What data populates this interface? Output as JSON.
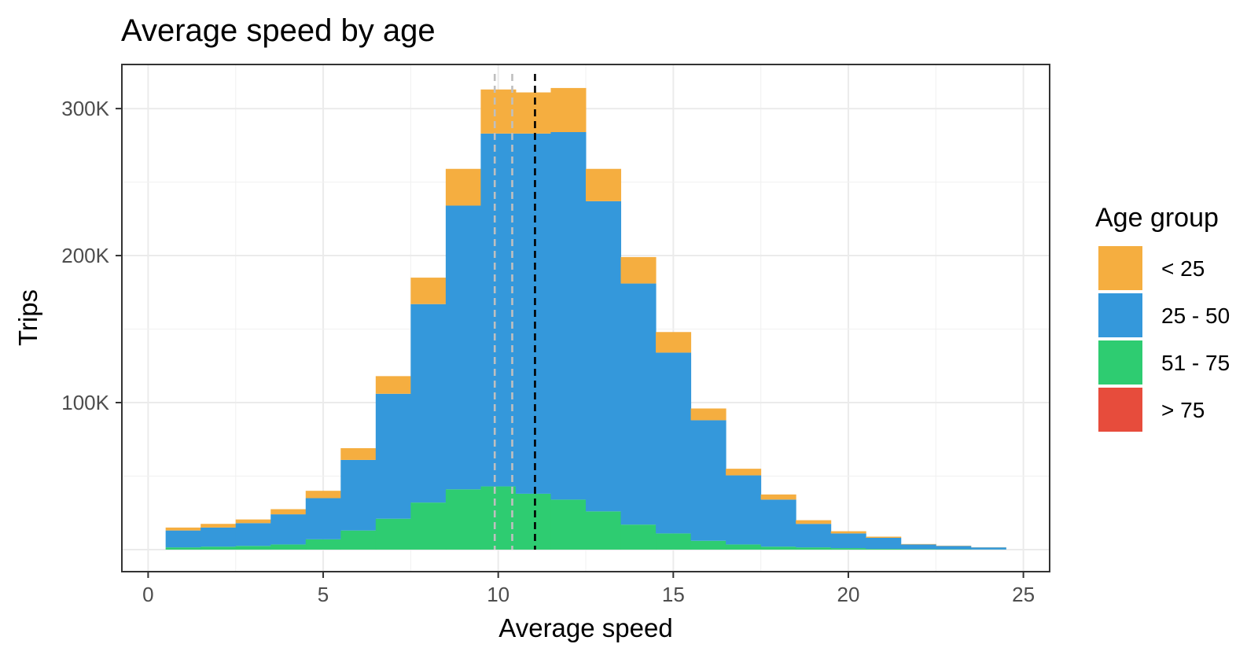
{
  "chart_data": {
    "type": "bar",
    "stacked": true,
    "title": "Average speed by age",
    "xlabel": "Average speed",
    "ylabel": "Trips",
    "xlim": [
      -0.75,
      25.75
    ],
    "ylim": [
      -15000,
      330000
    ],
    "x_ticks": [
      0,
      5,
      10,
      15,
      20,
      25
    ],
    "x_tick_labels": [
      "0",
      "5",
      "10",
      "15",
      "20",
      "25"
    ],
    "y_ticks": [
      100000,
      200000,
      300000
    ],
    "y_tick_labels": [
      "100K",
      "200K",
      "300K"
    ],
    "bin_width": 1,
    "bins": [
      1,
      2,
      3,
      4,
      5,
      6,
      7,
      8,
      9,
      10,
      11,
      12,
      13,
      14,
      15,
      16,
      17,
      18,
      19,
      20,
      21,
      22,
      23,
      24
    ],
    "series": [
      {
        "name": "> 75",
        "color": "#e74c3c",
        "values": [
          0,
          0,
          0,
          0,
          0,
          0,
          0,
          0,
          0,
          0,
          0,
          0,
          0,
          0,
          0,
          0,
          0,
          0,
          0,
          0,
          0,
          0,
          0,
          0
        ]
      },
      {
        "name": "51 - 75",
        "color": "#2ecc71",
        "values": [
          1500,
          2000,
          2500,
          3500,
          7000,
          13000,
          21000,
          32000,
          41000,
          43000,
          38000,
          34000,
          26000,
          17000,
          11000,
          6000,
          3500,
          2000,
          1500,
          1000,
          500,
          300,
          200,
          100
        ]
      },
      {
        "name": "25 - 50",
        "color": "#3498db",
        "values": [
          11500,
          13000,
          15500,
          20500,
          28000,
          48000,
          85000,
          135000,
          193000,
          240000,
          245000,
          250000,
          211000,
          164000,
          123000,
          82000,
          47000,
          32000,
          16000,
          10000,
          7500,
          3200,
          2300,
          1400
        ]
      },
      {
        "name": "< 25",
        "color": "#f5ae40",
        "values": [
          2000,
          2500,
          2500,
          3500,
          5000,
          8000,
          12000,
          18000,
          25000,
          30000,
          28000,
          30000,
          22000,
          18000,
          14000,
          8000,
          4500,
          3500,
          2500,
          1500,
          800,
          300,
          200,
          100
        ]
      }
    ],
    "legend": {
      "title": "Age group",
      "position": "right",
      "entries": [
        {
          "label": "< 25",
          "color": "#f5ae40"
        },
        {
          "label": "25 - 50",
          "color": "#3498db"
        },
        {
          "label": "51 - 75",
          "color": "#2ecc71"
        },
        {
          "label": "> 75",
          "color": "#e74c3c"
        }
      ]
    },
    "reference_lines": [
      {
        "x": 9.9,
        "color": "#bfbfbf",
        "style": "dashed"
      },
      {
        "x": 10.4,
        "color": "#bfbfbf",
        "style": "dashed"
      },
      {
        "x": 11.05,
        "color": "#000000",
        "style": "dashed"
      }
    ],
    "grid": true
  }
}
